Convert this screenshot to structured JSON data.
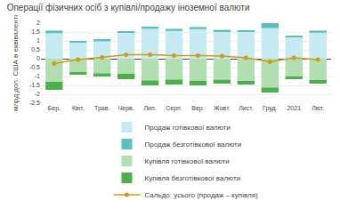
{
  "chart_data": {
    "type": "bar",
    "title": "Операції фізичних осіб з купівлі/продажу іноземної валюти",
    "ylabel": "млрд дол. США в еквіваленті",
    "categories": [
      "Бер.",
      "Квіт.",
      "Трав.",
      "Черв.",
      "Лип.",
      "Серп.",
      "Вер.",
      "Жовт.",
      "Лист.",
      "Груд.",
      "2021",
      "Лют."
    ],
    "series": [
      {
        "name": "Продаж готівкової валюти",
        "type": "bar",
        "color": "#c5eaf2",
        "values": [
          1.43,
          0.9,
          0.98,
          1.45,
          1.68,
          1.56,
          1.66,
          1.5,
          1.5,
          1.72,
          1.2,
          1.46
        ]
      },
      {
        "name": "Продаж безготівкової валюти",
        "type": "bar",
        "color": "#5bbfbf",
        "values": [
          0.15,
          0.1,
          0.12,
          0.1,
          0.12,
          0.12,
          0.12,
          0.12,
          0.1,
          0.28,
          0.1,
          0.12
        ]
      },
      {
        "name": "Купівля готівкової валюти",
        "type": "bar",
        "color": "#b2dfb2",
        "values": [
          -1.3,
          -0.75,
          -0.82,
          -0.85,
          -1.22,
          -1.17,
          -1.24,
          -1.18,
          -1.25,
          -1.62,
          -1.0,
          -1.2
        ]
      },
      {
        "name": "Купівля безготівкової валюти",
        "type": "bar",
        "color": "#4caf4c",
        "values": [
          -0.45,
          -0.15,
          -0.18,
          -0.3,
          -0.28,
          -0.28,
          -0.26,
          -0.22,
          -0.2,
          -0.28,
          -0.15,
          -0.2
        ]
      },
      {
        "name": "Сальдо: усього (продаж – купівля)",
        "type": "line",
        "color": "#d4981a",
        "marker": "circle",
        "values": [
          -0.28,
          -0.05,
          0.07,
          0.22,
          0.22,
          0.18,
          0.18,
          0.15,
          0.05,
          -0.18,
          0.05,
          -0.05
        ]
      }
    ],
    "stacked": true,
    "ylim": [
      -2.5,
      2.0
    ],
    "yticks": [
      -2.5,
      -2.0,
      -1.5,
      -1.0,
      -0.5,
      0,
      0.5,
      1.0,
      1.5,
      2.0
    ],
    "grid": true,
    "legend": "bottom"
  }
}
